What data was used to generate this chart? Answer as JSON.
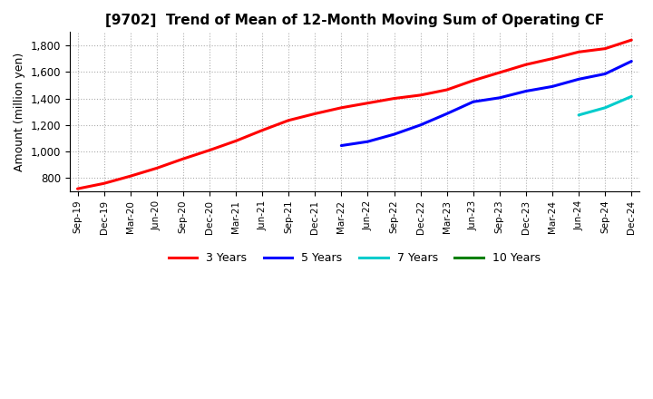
{
  "title": "[9702]  Trend of Mean of 12-Month Moving Sum of Operating CF",
  "ylabel": "Amount (million yen)",
  "background_color": "#ffffff",
  "grid_color": "#999999",
  "ylim": [
    700,
    1900
  ],
  "yticks": [
    800,
    1000,
    1200,
    1400,
    1600,
    1800
  ],
  "series": {
    "3years": {
      "color": "#ff0000",
      "label": "3 Years",
      "points": [
        [
          0,
          720
        ],
        [
          1,
          760
        ],
        [
          2,
          815
        ],
        [
          3,
          875
        ],
        [
          4,
          945
        ],
        [
          5,
          1010
        ],
        [
          6,
          1080
        ],
        [
          7,
          1160
        ],
        [
          8,
          1235
        ],
        [
          9,
          1285
        ],
        [
          10,
          1330
        ],
        [
          11,
          1365
        ],
        [
          12,
          1400
        ],
        [
          13,
          1425
        ],
        [
          14,
          1465
        ],
        [
          15,
          1535
        ],
        [
          16,
          1595
        ],
        [
          17,
          1655
        ],
        [
          18,
          1700
        ],
        [
          19,
          1750
        ],
        [
          20,
          1775
        ],
        [
          21,
          1840
        ]
      ]
    },
    "5years": {
      "color": "#0000ff",
      "label": "5 Years",
      "points": [
        [
          10,
          1045
        ],
        [
          11,
          1075
        ],
        [
          12,
          1130
        ],
        [
          13,
          1200
        ],
        [
          14,
          1285
        ],
        [
          15,
          1375
        ],
        [
          16,
          1405
        ],
        [
          17,
          1455
        ],
        [
          18,
          1490
        ],
        [
          19,
          1545
        ],
        [
          20,
          1585
        ],
        [
          21,
          1680
        ]
      ]
    },
    "7years": {
      "color": "#00cccc",
      "label": "7 Years",
      "points": [
        [
          19,
          1275
        ],
        [
          20,
          1330
        ],
        [
          21,
          1415
        ]
      ]
    },
    "10years": {
      "color": "#008000",
      "label": "10 Years",
      "points": []
    }
  },
  "xtick_labels": [
    "Sep-19",
    "Dec-19",
    "Mar-20",
    "Jun-20",
    "Sep-20",
    "Dec-20",
    "Mar-21",
    "Jun-21",
    "Sep-21",
    "Dec-21",
    "Mar-22",
    "Jun-22",
    "Sep-22",
    "Dec-22",
    "Mar-23",
    "Jun-23",
    "Sep-23",
    "Dec-23",
    "Mar-24",
    "Jun-24",
    "Sep-24",
    "Dec-24"
  ]
}
